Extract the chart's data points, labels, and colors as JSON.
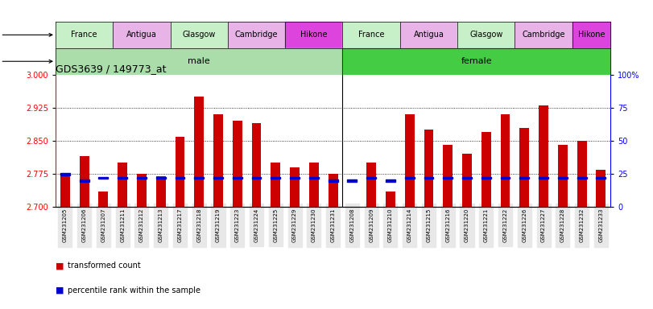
{
  "title": "GDS3639 / 149773_at",
  "samples": [
    "GSM231205",
    "GSM231206",
    "GSM231207",
    "GSM231211",
    "GSM231212",
    "GSM231213",
    "GSM231217",
    "GSM231218",
    "GSM231219",
    "GSM231223",
    "GSM231224",
    "GSM231225",
    "GSM231229",
    "GSM231230",
    "GSM231231",
    "GSM231208",
    "GSM231209",
    "GSM231210",
    "GSM231214",
    "GSM231215",
    "GSM231216",
    "GSM231220",
    "GSM231221",
    "GSM231222",
    "GSM231226",
    "GSM231227",
    "GSM231228",
    "GSM231232",
    "GSM231233"
  ],
  "bar_values": [
    2.775,
    2.815,
    2.735,
    2.8,
    2.775,
    2.77,
    2.86,
    2.95,
    2.91,
    2.895,
    2.89,
    2.8,
    2.79,
    2.8,
    2.775,
    2.7,
    2.8,
    2.735,
    2.91,
    2.875,
    2.84,
    2.82,
    2.87,
    2.91,
    2.88,
    2.93,
    2.84,
    2.85,
    2.785
  ],
  "percentile_values": [
    25,
    20,
    22,
    22,
    22,
    22,
    22,
    22,
    22,
    22,
    22,
    22,
    22,
    22,
    20,
    20,
    22,
    20,
    22,
    22,
    22,
    22,
    22,
    22,
    22,
    22,
    22,
    22,
    22
  ],
  "ymin": 2.7,
  "ymax": 3.0,
  "yticks_left": [
    2.7,
    2.775,
    2.85,
    2.925,
    3.0
  ],
  "yticks_right_vals": [
    0,
    25,
    50,
    75,
    100
  ],
  "yticks_right_labels": [
    "0",
    "25",
    "50",
    "75",
    "100%"
  ],
  "dotted_grid_values": [
    2.775,
    2.85,
    2.925
  ],
  "bar_color": "#cc0000",
  "percentile_color": "#0000cc",
  "strains_male": [
    {
      "label": "France",
      "start": 0,
      "end": 3,
      "color": "#c8f0c8"
    },
    {
      "label": "Antigua",
      "start": 3,
      "end": 6,
      "color": "#e8b4e8"
    },
    {
      "label": "Glasgow",
      "start": 6,
      "end": 9,
      "color": "#c8f0c8"
    },
    {
      "label": "Cambridge",
      "start": 9,
      "end": 12,
      "color": "#e8b4e8"
    },
    {
      "label": "Hikone",
      "start": 12,
      "end": 15,
      "color": "#dd44dd"
    }
  ],
  "strains_female": [
    {
      "label": "France",
      "start": 15,
      "end": 18,
      "color": "#c8f0c8"
    },
    {
      "label": "Antigua",
      "start": 18,
      "end": 21,
      "color": "#e8b4e8"
    },
    {
      "label": "Glasgow",
      "start": 21,
      "end": 24,
      "color": "#c8f0c8"
    },
    {
      "label": "Cambridge",
      "start": 24,
      "end": 27,
      "color": "#e8b4e8"
    },
    {
      "label": "Hikone",
      "start": 27,
      "end": 29,
      "color": "#dd44dd"
    }
  ],
  "gender_male_color": "#aaddaa",
  "gender_female_color": "#44cc44",
  "legend_bar_label": "transformed count",
  "legend_pct_label": "percentile rank within the sample",
  "background_color": "#ffffff"
}
